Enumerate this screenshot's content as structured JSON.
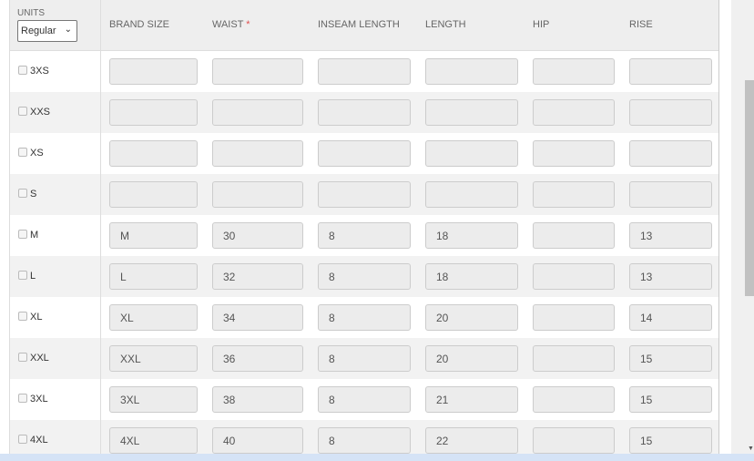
{
  "units": {
    "label": "UNITS",
    "selected": "Regular"
  },
  "columns": [
    "BRAND SIZE",
    "WAIST",
    "INSEAM LENGTH",
    "LENGTH",
    "HIP",
    "RISE"
  ],
  "required_mark": "*",
  "rows": [
    {
      "size": "3XS",
      "values": [
        "",
        "",
        "",
        "",
        "",
        ""
      ]
    },
    {
      "size": "XXS",
      "values": [
        "",
        "",
        "",
        "",
        "",
        ""
      ]
    },
    {
      "size": "XS",
      "values": [
        "",
        "",
        "",
        "",
        "",
        ""
      ]
    },
    {
      "size": "S",
      "values": [
        "",
        "",
        "",
        "",
        "",
        ""
      ]
    },
    {
      "size": "M",
      "values": [
        "M",
        "30",
        "8",
        "18",
        "",
        "13"
      ]
    },
    {
      "size": "L",
      "values": [
        "L",
        "32",
        "8",
        "18",
        "",
        "13"
      ]
    },
    {
      "size": "XL",
      "values": [
        "XL",
        "34",
        "8",
        "20",
        "",
        "14"
      ]
    },
    {
      "size": "XXL",
      "values": [
        "XXL",
        "36",
        "8",
        "20",
        "",
        "15"
      ]
    },
    {
      "size": "3XL",
      "values": [
        "3XL",
        "38",
        "8",
        "21",
        "",
        "15"
      ]
    },
    {
      "size": "4XL",
      "values": [
        "4XL",
        "40",
        "8",
        "22",
        "",
        "15"
      ]
    }
  ]
}
